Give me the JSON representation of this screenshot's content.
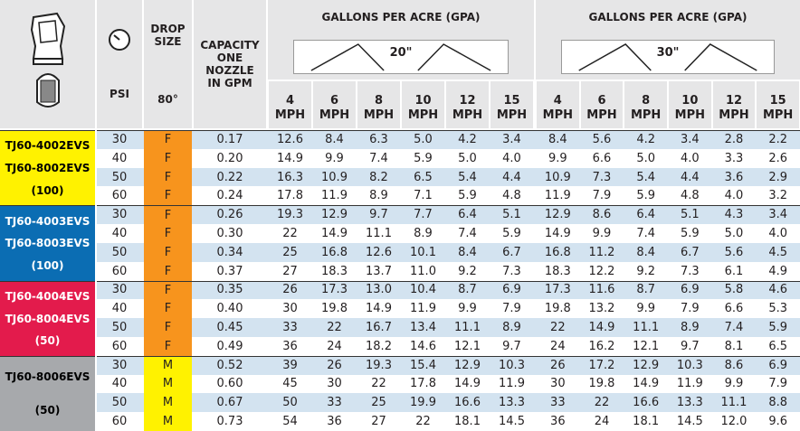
{
  "header": {
    "psi": "PSI",
    "drop_size": "DROP SIZE",
    "angle": "80°",
    "capacity": "CAPACITY ONE NOZZLE IN GPM",
    "gpa_titles": [
      "GALLONS PER ACRE (GPA)",
      "GALLONS PER ACRE (GPA)"
    ],
    "spacings": [
      "20\"",
      "30\""
    ],
    "speeds": [
      "4",
      "6",
      "8",
      "10",
      "12",
      "15"
    ],
    "unit": "MPH"
  },
  "groups": [
    {
      "label": [
        "TJ60-4002EVS",
        "TJ60-8002EVS",
        "(100)"
      ],
      "color": "#fff200",
      "text_color": "#000000",
      "rows": [
        [
          "30",
          "F",
          "0.17",
          "12.6",
          "8.4",
          "6.3",
          "5.0",
          "4.2",
          "3.4",
          "8.4",
          "5.6",
          "4.2",
          "3.4",
          "2.8",
          "2.2"
        ],
        [
          "40",
          "F",
          "0.20",
          "14.9",
          "9.9",
          "7.4",
          "5.9",
          "5.0",
          "4.0",
          "9.9",
          "6.6",
          "5.0",
          "4.0",
          "3.3",
          "2.6"
        ],
        [
          "50",
          "F",
          "0.22",
          "16.3",
          "10.9",
          "8.2",
          "6.5",
          "5.4",
          "4.4",
          "10.9",
          "7.3",
          "5.4",
          "4.4",
          "3.6",
          "2.9"
        ],
        [
          "60",
          "F",
          "0.24",
          "17.8",
          "11.9",
          "8.9",
          "7.1",
          "5.9",
          "4.8",
          "11.9",
          "7.9",
          "5.9",
          "4.8",
          "4.0",
          "3.2"
        ]
      ]
    },
    {
      "label": [
        "TJ60-4003EVS",
        "TJ60-8003EVS",
        "(100)"
      ],
      "color": "#0b6db3",
      "text_color": "#ffffff",
      "rows": [
        [
          "30",
          "F",
          "0.26",
          "19.3",
          "12.9",
          "9.7",
          "7.7",
          "6.4",
          "5.1",
          "12.9",
          "8.6",
          "6.4",
          "5.1",
          "4.3",
          "3.4"
        ],
        [
          "40",
          "F",
          "0.30",
          "22",
          "14.9",
          "11.1",
          "8.9",
          "7.4",
          "5.9",
          "14.9",
          "9.9",
          "7.4",
          "5.9",
          "5.0",
          "4.0"
        ],
        [
          "50",
          "F",
          "0.34",
          "25",
          "16.8",
          "12.6",
          "10.1",
          "8.4",
          "6.7",
          "16.8",
          "11.2",
          "8.4",
          "6.7",
          "5.6",
          "4.5"
        ],
        [
          "60",
          "F",
          "0.37",
          "27",
          "18.3",
          "13.7",
          "11.0",
          "9.2",
          "7.3",
          "18.3",
          "12.2",
          "9.2",
          "7.3",
          "6.1",
          "4.9"
        ]
      ]
    },
    {
      "label": [
        "TJ60-4004EVS",
        "TJ60-8004EVS",
        "(50)"
      ],
      "color": "#e31b4c",
      "text_color": "#ffffff",
      "rows": [
        [
          "30",
          "F",
          "0.35",
          "26",
          "17.3",
          "13.0",
          "10.4",
          "8.7",
          "6.9",
          "17.3",
          "11.6",
          "8.7",
          "6.9",
          "5.8",
          "4.6"
        ],
        [
          "40",
          "F",
          "0.40",
          "30",
          "19.8",
          "14.9",
          "11.9",
          "9.9",
          "7.9",
          "19.8",
          "13.2",
          "9.9",
          "7.9",
          "6.6",
          "5.3"
        ],
        [
          "50",
          "F",
          "0.45",
          "33",
          "22",
          "16.7",
          "13.4",
          "11.1",
          "8.9",
          "22",
          "14.9",
          "11.1",
          "8.9",
          "7.4",
          "5.9"
        ],
        [
          "60",
          "F",
          "0.49",
          "36",
          "24",
          "18.2",
          "14.6",
          "12.1",
          "9.7",
          "24",
          "16.2",
          "12.1",
          "9.7",
          "8.1",
          "6.5"
        ]
      ]
    },
    {
      "label": [
        "TJ60-8006EVS",
        "(50)"
      ],
      "color": "#a7a9ac",
      "text_color": "#000000",
      "rows": [
        [
          "30",
          "M",
          "0.52",
          "39",
          "26",
          "19.3",
          "15.4",
          "12.9",
          "10.3",
          "26",
          "17.2",
          "12.9",
          "10.3",
          "8.6",
          "6.9"
        ],
        [
          "40",
          "M",
          "0.60",
          "45",
          "30",
          "22",
          "17.8",
          "14.9",
          "11.9",
          "30",
          "19.8",
          "14.9",
          "11.9",
          "9.9",
          "7.9"
        ],
        [
          "50",
          "M",
          "0.67",
          "50",
          "33",
          "25",
          "19.9",
          "16.6",
          "13.3",
          "33",
          "22",
          "16.6",
          "13.3",
          "11.1",
          "8.8"
        ],
        [
          "60",
          "M",
          "0.73",
          "54",
          "36",
          "27",
          "22",
          "18.1",
          "14.5",
          "36",
          "24",
          "18.1",
          "14.5",
          "12.0",
          "9.6"
        ]
      ]
    }
  ],
  "drop_colors": {
    "F": "#f7941d",
    "M": "#fff200"
  }
}
